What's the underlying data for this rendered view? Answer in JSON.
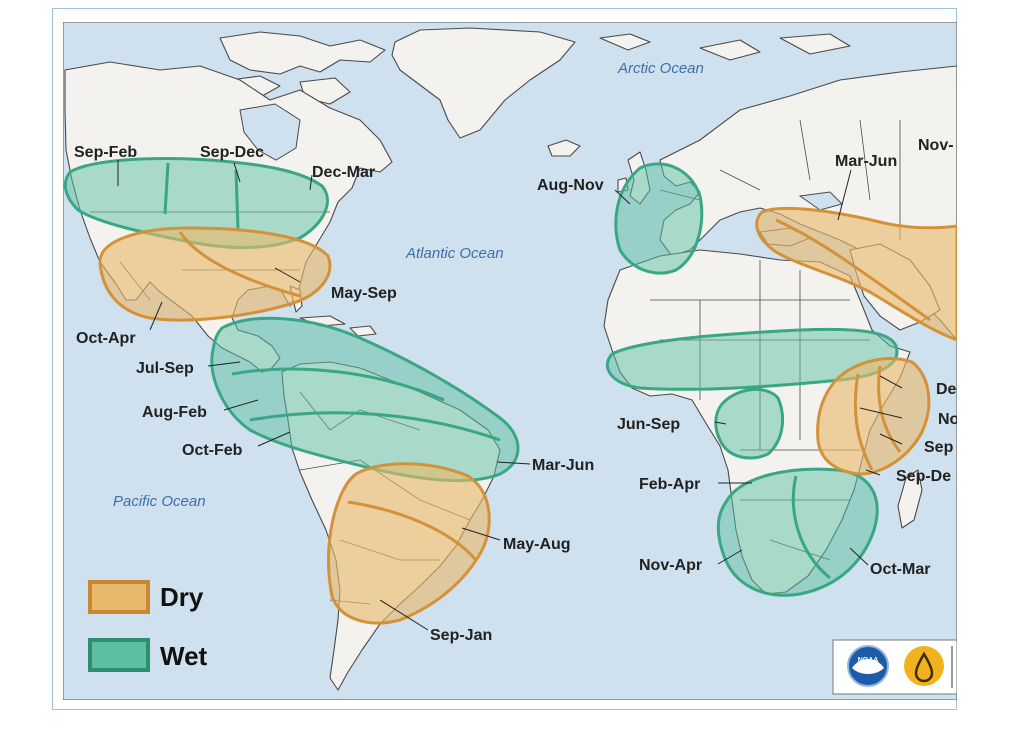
{
  "oceans": {
    "arctic": "Arctic Ocean",
    "atlantic": "Atlantic Ocean",
    "pacific": "Pacific Ocean"
  },
  "labels": {
    "na_sep_feb": "Sep-Feb",
    "na_sep_dec": "Sep-Dec",
    "na_dec_mar": "Dec-Mar",
    "na_may_sep": "May-Sep",
    "na_oct_apr": "Oct-Apr",
    "ca_jul_sep": "Jul-Sep",
    "ca_aug_feb": "Aug-Feb",
    "ca_oct_feb": "Oct-Feb",
    "sa_mar_jun": "Mar-Jun",
    "sa_may_aug": "May-Aug",
    "sa_sep_jan": "Sep-Jan",
    "eu_aug_nov": "Aug-Nov",
    "me_mar_jun": "Mar-Jun",
    "as_nov": "Nov-",
    "af_jun_sep": "Jun-Sep",
    "af_feb_apr": "Feb-Apr",
    "af_nov_apr": "Nov-Apr",
    "af_oct_mar": "Oct-Mar",
    "ea_de": "De",
    "ea_no": "No",
    "ea_sep": "Sep",
    "ea_sep_de": "Sep-De"
  },
  "legend": {
    "dry": "Dry",
    "wet": "Wet",
    "dry_color": "#e8b96a",
    "wet_color": "#5dbfa2"
  },
  "colors": {
    "ocean": "#cfe0ee",
    "land": "#f4f2ee"
  },
  "logos": [
    "noaa-logo",
    "drought-logo"
  ]
}
